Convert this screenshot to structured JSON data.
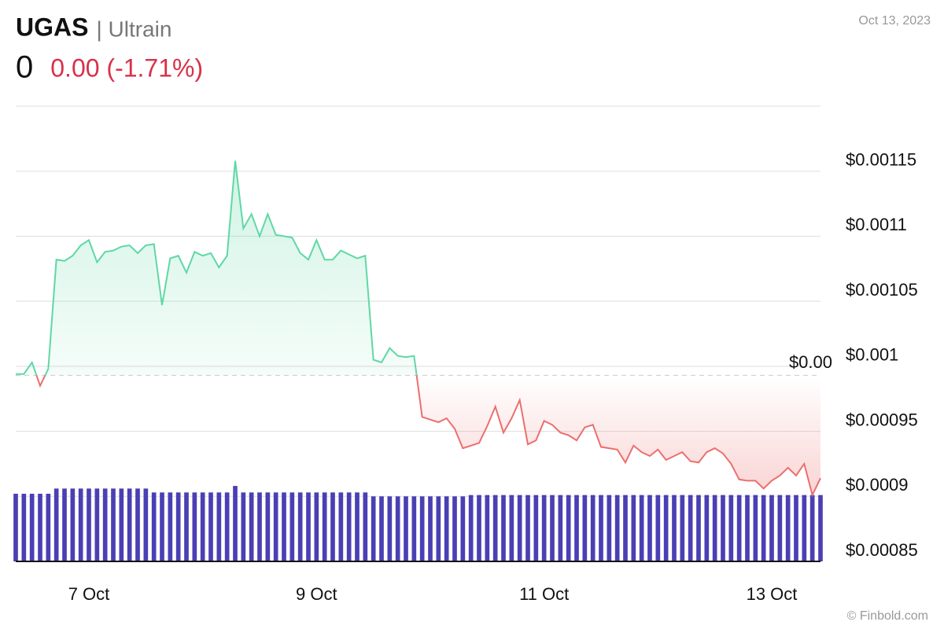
{
  "chart_data": {
    "type": "line",
    "title": "UGAS",
    "subtitle": "| Ultrain",
    "price": "0",
    "change": "0.00 (-1.71%)",
    "date": "Oct 13, 2023",
    "watermark": "© Finbold.com",
    "color": "#5fd8a4",
    "down_color": "#ec6e6e",
    "reference": {
      "value": 0.000993,
      "label": "$0.00"
    },
    "ylim": [
      0.00085,
      0.0012
    ],
    "yticks": [
      {
        "value": 0.00085,
        "label": "$0.00085"
      },
      {
        "value": 0.0009,
        "label": "$0.0009"
      },
      {
        "value": 0.00095,
        "label": "$0.00095"
      },
      {
        "value": 0.001,
        "label": "$0.001"
      },
      {
        "value": 0.00105,
        "label": "$0.00105"
      },
      {
        "value": 0.0011,
        "label": "$0.0011"
      },
      {
        "value": 0.00115,
        "label": "$0.00115"
      }
    ],
    "grid": true,
    "categories": [
      null,
      null,
      null,
      null,
      null,
      null,
      null,
      null,
      null,
      "7 Oct",
      null,
      null,
      null,
      null,
      null,
      null,
      null,
      null,
      null,
      null,
      null,
      null,
      null,
      null,
      null,
      null,
      null,
      null,
      null,
      null,
      null,
      null,
      null,
      null,
      null,
      null,
      null,
      "9 Oct",
      null,
      null,
      null,
      null,
      null,
      null,
      null,
      null,
      null,
      null,
      null,
      null,
      null,
      null,
      null,
      null,
      null,
      null,
      null,
      null,
      null,
      null,
      null,
      null,
      null,
      null,
      null,
      "11 Oct",
      null,
      null,
      null,
      null,
      null,
      null,
      null,
      null,
      null,
      null,
      null,
      null,
      null,
      null,
      null,
      null,
      null,
      null,
      null,
      null,
      null,
      null,
      null,
      null,
      null,
      null,
      null,
      "13 Oct",
      null,
      null,
      null,
      null,
      null,
      null
    ],
    "values": [
      0.000994,
      0.000994,
      0.001003,
      0.000985,
      0.000998,
      0.001082,
      0.001081,
      0.001085,
      0.001093,
      0.001097,
      0.00108,
      0.001088,
      0.001089,
      0.001092,
      0.001093,
      0.001087,
      0.001093,
      0.001094,
      0.001047,
      0.001083,
      0.001085,
      0.001072,
      0.001088,
      0.001085,
      0.001087,
      0.001076,
      0.001085,
      0.001158,
      0.001106,
      0.001117,
      0.0011,
      0.001117,
      0.001101,
      0.0011,
      0.001099,
      0.001087,
      0.001082,
      0.001097,
      0.001082,
      0.001082,
      0.001089,
      0.001086,
      0.001083,
      0.001085,
      0.001005,
      0.001003,
      0.001014,
      0.001008,
      0.001007,
      0.001008,
      0.000961,
      0.000959,
      0.000957,
      0.00096,
      0.000952,
      0.000937,
      0.000939,
      0.000941,
      0.000954,
      0.000969,
      0.000949,
      0.00096,
      0.000974,
      0.00094,
      0.000943,
      0.000958,
      0.000955,
      0.000949,
      0.000947,
      0.000943,
      0.000953,
      0.000955,
      0.000938,
      0.000937,
      0.000936,
      0.000926,
      0.000939,
      0.000934,
      0.000931,
      0.000936,
      0.000928,
      0.000931,
      0.000934,
      0.000927,
      0.000926,
      0.000934,
      0.000937,
      0.000933,
      0.000925,
      0.000913,
      0.000912,
      0.000912,
      0.000906,
      0.000912,
      0.000916,
      0.000922,
      0.000916,
      0.000925,
      0.000901,
      0.000914
    ],
    "volume": {
      "color": "#4b3fb4",
      "values": [
        0.000902,
        0.000902,
        0.000902,
        0.000902,
        0.000902,
        0.000906,
        0.000906,
        0.000906,
        0.000906,
        0.000906,
        0.000906,
        0.000906,
        0.000906,
        0.000906,
        0.000906,
        0.000906,
        0.000906,
        0.000903,
        0.000903,
        0.000903,
        0.000903,
        0.000903,
        0.000903,
        0.000903,
        0.000903,
        0.000903,
        0.000903,
        0.000908,
        0.000903,
        0.000903,
        0.000903,
        0.000903,
        0.000903,
        0.000903,
        0.000903,
        0.000903,
        0.000903,
        0.000903,
        0.000903,
        0.000903,
        0.000903,
        0.000903,
        0.000903,
        0.000903,
        0.0009,
        0.0009,
        0.0009,
        0.0009,
        0.0009,
        0.0009,
        0.0009,
        0.0009,
        0.0009,
        0.0009,
        0.0009,
        0.0009,
        0.000901,
        0.000901,
        0.000901,
        0.000901,
        0.000901,
        0.000901,
        0.000901,
        0.000901,
        0.000901,
        0.000901,
        0.000901,
        0.000901,
        0.000901,
        0.000901,
        0.000901,
        0.000901,
        0.000901,
        0.000901,
        0.000901,
        0.000901,
        0.000901,
        0.000901,
        0.000901,
        0.000901,
        0.000901,
        0.000901,
        0.000901,
        0.000901,
        0.000901,
        0.000901,
        0.000901,
        0.000901,
        0.000901,
        0.000901,
        0.000901,
        0.000901,
        0.000901,
        0.000901,
        0.000901,
        0.000901,
        0.000901,
        0.000901,
        0.000901,
        0.000901
      ]
    }
  }
}
